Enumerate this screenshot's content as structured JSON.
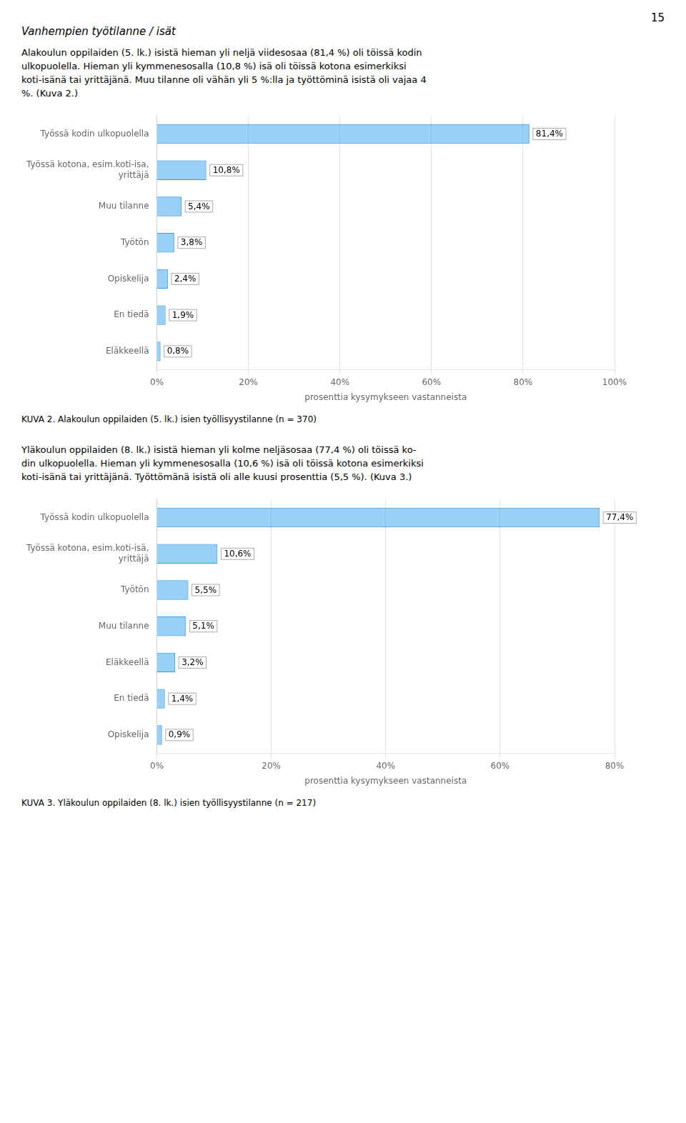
{
  "chart_data": [
    {
      "type": "bar",
      "orientation": "horizontal",
      "annotations": [
        "15",
        "Vanhempien työtilanne / isät",
        "Alakoulun oppilaiden (5. lk.) isistä hieman yli neljä viidesosaa (81,4 %) oli töissä kodin",
        "ulkopuolella. Hieman yli kymmenesosalla (10,8 %) isä oli töissä kotona esimerkiksi",
        "koti-isänä tai yrittäjänä. Muu tilanne oli vähän yli 5 %:lla ja työttöminä isistä oli vajaa 4",
        "%. (Kuva 2.)"
      ],
      "title": "KUVA 2. Alakoulun oppilaiden (5. lk.) isien työllisyystilanne (n = 370)",
      "categories": [
        "Eläkkeellä",
        "En tiedä",
        "Opiskelija",
        "Työtön",
        "Muu tilanne",
        "Työssä kotona, esim.koti-isa,\nyrittäjä",
        "Työssä kodin ulkopuolella"
      ],
      "values": [
        0.8,
        1.9,
        2.4,
        3.8,
        5.4,
        10.8,
        81.4
      ],
      "value_labels": [
        "0,8%",
        "1,9%",
        "2,4%",
        "3,8%",
        "5,4%",
        "10,8%",
        "81,4%"
      ],
      "data_labels": true,
      "xlim": [
        0,
        100
      ],
      "xticks": [
        {
          "value": 0,
          "label": "0%"
        },
        {
          "value": 20,
          "label": "20%"
        },
        {
          "value": 40,
          "label": "40%"
        },
        {
          "value": 60,
          "label": "60%"
        },
        {
          "value": 80,
          "label": "80%"
        },
        {
          "value": 100,
          "label": "100%"
        }
      ],
      "xlabel": "prosenttia kysymykseen vastanneista",
      "grid": true
    },
    {
      "type": "bar",
      "orientation": "horizontal",
      "annotations": [
        "Yläkoulun oppilaiden (8. lk.) isistä hieman yli kolme neljäsosaa (77,4 %) oli töissä ko-",
        "din ulkopuolella. Hieman yli kymmenesosalla (10,6 %) isä oli töissä kotona esimerkiksi",
        "koti-isänä tai yrittäjänä. Työttömänä isistä oli alle kuusi prosenttia (5,5 %). (Kuva 3.)"
      ],
      "title": "KUVA 3. Yläkoulun oppilaiden (8. lk.) isien työllisyystilanne (n = 217)",
      "categories": [
        "Opiskelija",
        "En tiedä",
        "Eläkkeellä",
        "Muu tilanne",
        "Työtön",
        "Työssä kotona, esim.koti-isä,\nyrittäjä",
        "Työssä kodin ulkopuolella"
      ],
      "values": [
        0.9,
        1.4,
        3.2,
        5.1,
        5.5,
        10.6,
        77.4
      ],
      "value_labels": [
        "0,9%",
        "1,4%",
        "3,2%",
        "5,1%",
        "5,5%",
        "10,6%",
        "77,4%"
      ],
      "data_labels": true,
      "xlim": [
        0,
        80
      ],
      "xticks": [
        {
          "value": 0,
          "label": "0%"
        },
        {
          "value": 20,
          "label": "20%"
        },
        {
          "value": 40,
          "label": "40%"
        },
        {
          "value": 60,
          "label": "60%"
        },
        {
          "value": 80,
          "label": "80%"
        }
      ],
      "xlabel": "prosenttia kysymykseen vastanneista",
      "grid": true
    }
  ]
}
